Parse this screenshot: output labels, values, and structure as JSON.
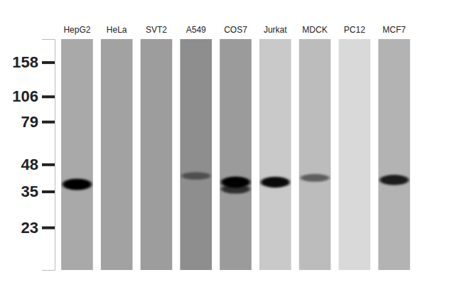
{
  "chart_data": {
    "type": "western_blot",
    "categories": [
      "HepG2",
      "HeLa",
      "SVT2",
      "A549",
      "COS7",
      "Jurkat",
      "MDCK",
      "PC12",
      "MCF7"
    ],
    "colors": [
      "#a9a9a9",
      "#a2a2a2",
      "#9d9d9d",
      "#8e8e8e",
      "#9b9b9b",
      "#c9c9c9",
      "#bcbcbc",
      "#d9d9d9",
      "#b3b3b3"
    ],
    "log": "y",
    "ylim": [
      14,
      207
    ],
    "yticks": [
      158,
      106,
      79,
      48,
      35,
      23
    ],
    "bands": [
      {
        "lane": "HepG2",
        "mw": 38,
        "intensity": 1.0
      },
      {
        "lane": "A549",
        "mw": 42,
        "intensity": 0.45
      },
      {
        "lane": "COS7",
        "mw": 39,
        "intensity": 1.0
      },
      {
        "lane": "COS7",
        "mw": 36,
        "intensity": 0.7
      },
      {
        "lane": "Jurkat",
        "mw": 39,
        "intensity": 0.95
      },
      {
        "lane": "MDCK",
        "mw": 41,
        "intensity": 0.5
      },
      {
        "lane": "MCF7",
        "mw": 40,
        "intensity": 0.85
      }
    ]
  }
}
